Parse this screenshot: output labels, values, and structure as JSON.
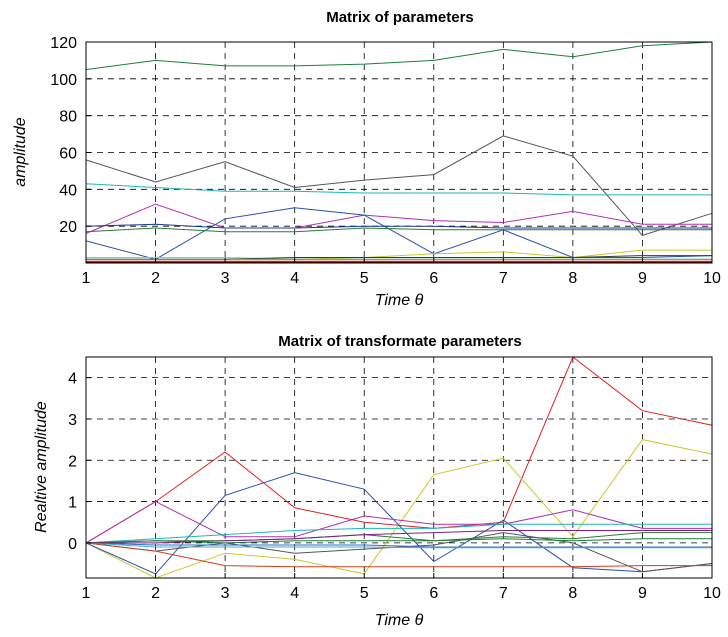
{
  "chart_data": [
    {
      "type": "line",
      "title": "Matrix of parameters",
      "xlabel": "Time θ",
      "ylabel": "amplitude",
      "x": [
        1,
        2,
        3,
        4,
        5,
        6,
        7,
        8,
        9,
        10
      ],
      "xlim": [
        1,
        10
      ],
      "ylim": [
        0,
        120
      ],
      "xticks": [
        1,
        2,
        3,
        4,
        5,
        6,
        7,
        8,
        9,
        10
      ],
      "yticks": [
        20,
        40,
        60,
        80,
        100,
        120
      ],
      "grid": true,
      "series": [
        {
          "color": "#1a7f3a",
          "values": [
            105,
            110,
            107,
            107,
            108,
            110,
            116,
            112,
            118,
            120
          ]
        },
        {
          "color": "#555555",
          "values": [
            56,
            44,
            55,
            41,
            45,
            48,
            69,
            58,
            15,
            27
          ]
        },
        {
          "color": "#1fb6b6",
          "values": [
            43,
            41,
            39,
            39,
            38,
            38,
            38,
            37,
            37,
            37
          ]
        },
        {
          "color": "#b030b0",
          "values": [
            16,
            32,
            19,
            19,
            26,
            23,
            22,
            28,
            21,
            21
          ]
        },
        {
          "color": "#2a4fb0",
          "values": [
            12,
            2,
            24,
            30,
            26,
            5,
            18,
            3,
            3,
            4
          ]
        },
        {
          "color": "#1b3a8a",
          "values": [
            20,
            21,
            19,
            19,
            20,
            20,
            19,
            19,
            19,
            19
          ]
        },
        {
          "color": "#2a7a3a",
          "values": [
            17,
            19,
            17,
            17,
            19,
            18,
            18,
            18,
            18,
            18
          ]
        },
        {
          "color": "#c8c830",
          "values": [
            3,
            3,
            3,
            2,
            3,
            5,
            6,
            3,
            7,
            7
          ]
        },
        {
          "color": "#3a3a3a",
          "values": [
            2,
            2,
            2,
            3,
            3,
            3,
            3,
            3,
            4,
            4
          ]
        },
        {
          "color": "#20a060",
          "values": [
            2,
            2,
            2,
            2,
            2,
            2,
            2,
            2,
            2,
            2
          ]
        },
        {
          "color": "#e02020",
          "values": [
            1,
            1,
            1,
            1,
            1,
            1,
            1,
            1,
            1,
            1
          ]
        },
        {
          "color": "#800000",
          "values": [
            0.5,
            0.5,
            0.5,
            0.5,
            0.5,
            0.5,
            0.5,
            0.5,
            0.5,
            0.5
          ]
        }
      ]
    },
    {
      "type": "line",
      "title": "Matrix of transformate parameters",
      "xlabel": "Time θ",
      "ylabel": "Realtive amplitude",
      "x": [
        1,
        2,
        3,
        4,
        5,
        6,
        7,
        8,
        9,
        10
      ],
      "xlim": [
        1,
        10
      ],
      "ylim": [
        -0.85,
        4.5
      ],
      "xticks": [
        1,
        2,
        3,
        4,
        5,
        6,
        7,
        8,
        9,
        10
      ],
      "yticks": [
        0,
        1,
        2,
        3,
        4
      ],
      "grid": true,
      "series": [
        {
          "color": "#e02020",
          "values": [
            0,
            1.0,
            2.2,
            0.85,
            0.5,
            0.35,
            0.5,
            4.5,
            3.2,
            2.85
          ]
        },
        {
          "color": "#c8c830",
          "values": [
            0,
            -0.85,
            -0.25,
            -0.4,
            -0.75,
            1.65,
            2.05,
            0.15,
            2.5,
            2.15
          ]
        },
        {
          "color": "#2a4fb0",
          "values": [
            0,
            -0.75,
            1.15,
            1.7,
            1.3,
            -0.45,
            0.55,
            -0.6,
            -0.7,
            -0.5
          ]
        },
        {
          "color": "#b030b0",
          "values": [
            0,
            1.0,
            0.15,
            0.15,
            0.65,
            0.45,
            0.45,
            0.8,
            0.35,
            0.35
          ]
        },
        {
          "color": "#1fb6b6",
          "values": [
            0,
            0.1,
            0.2,
            0.3,
            0.35,
            0.35,
            0.45,
            0.45,
            0.45,
            0.45
          ]
        },
        {
          "color": "#555555",
          "values": [
            0,
            -0.2,
            0.0,
            -0.25,
            -0.15,
            -0.05,
            0.25,
            0.0,
            -0.7,
            -0.5
          ]
        },
        {
          "color": "#1a7f3a",
          "values": [
            0,
            0.05,
            0.0,
            0.05,
            0.05,
            0.05,
            0.1,
            0.05,
            0.1,
            0.1
          ]
        },
        {
          "color": "#d04020",
          "values": [
            0,
            -0.2,
            -0.55,
            -0.58,
            -0.58,
            -0.58,
            -0.58,
            -0.58,
            -0.55,
            -0.55
          ]
        },
        {
          "color": "#2a7a3a",
          "values": [
            0,
            0.05,
            0.05,
            0.1,
            0.2,
            0.05,
            0.15,
            0.1,
            0.25,
            0.25
          ]
        },
        {
          "color": "#3a6ac0",
          "values": [
            0,
            -0.05,
            -0.05,
            -0.05,
            -0.05,
            -0.1,
            -0.1,
            -0.1,
            -0.1,
            -0.1
          ]
        },
        {
          "color": "#40b0d0",
          "values": [
            0,
            -0.1,
            -0.1,
            -0.1,
            -0.1,
            -0.12,
            -0.12,
            -0.12,
            -0.12,
            -0.12
          ]
        },
        {
          "color": "#802080",
          "values": [
            0,
            0.0,
            0.05,
            0.1,
            0.2,
            0.25,
            0.3,
            0.3,
            0.3,
            0.3
          ]
        }
      ]
    }
  ]
}
